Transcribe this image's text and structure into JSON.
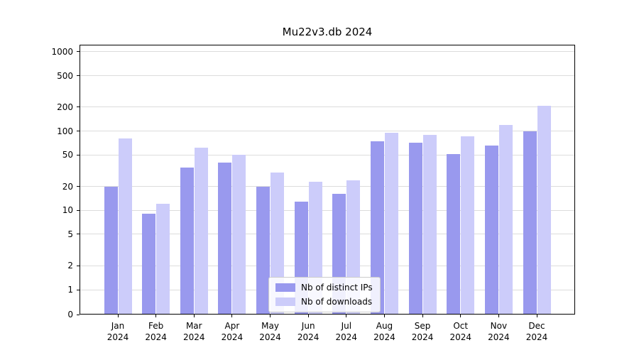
{
  "chart_data": {
    "type": "bar",
    "title": "Mu22v3.db 2024",
    "categories": [
      "Jan 2024",
      "Feb 2024",
      "Mar 2024",
      "Apr 2024",
      "May 2024",
      "Jun 2024",
      "Jul 2024",
      "Aug 2024",
      "Sep 2024",
      "Oct 2024",
      "Nov 2024",
      "Dec 2024"
    ],
    "series": [
      {
        "name": "Nb of distinct IPs",
        "color": "#9999ee",
        "values": [
          20,
          9,
          35,
          40,
          20,
          13,
          16,
          75,
          72,
          51,
          65,
          100
        ]
      },
      {
        "name": "Nb of downloads",
        "color": "#ccccfa",
        "values": [
          80,
          12,
          62,
          50,
          30,
          23,
          24,
          95,
          90,
          85,
          120,
          210
        ]
      }
    ],
    "yscale": "symlog",
    "yticks": [
      0,
      1,
      2,
      5,
      10,
      20,
      50,
      100,
      200,
      500,
      1000
    ],
    "ylim": [
      0,
      1000
    ],
    "grid": "horizontal",
    "legend_position": "lower center"
  }
}
